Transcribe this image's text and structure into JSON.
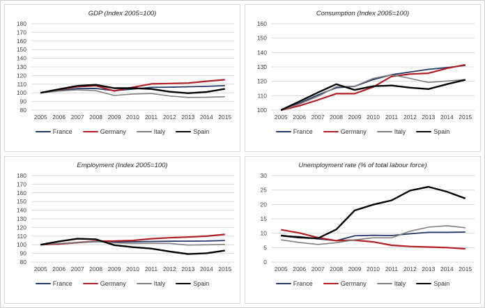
{
  "colors": {
    "grid": "#d9d9d9",
    "axis_text": "#404040",
    "panel_border": "#d9d9d9",
    "title_text": "#262626",
    "france": "#1f3864",
    "germany": "#b01e24",
    "italy": "#7f7f7f",
    "spain": "#000000"
  },
  "legend_labels": [
    "France",
    "Germany",
    "Italy",
    "Spain"
  ],
  "chart_data": [
    {
      "type": "line",
      "title": "GDP (Index 2005=100)",
      "categories": [
        "2005",
        "2006",
        "2007",
        "2008",
        "2009",
        "2010",
        "2011",
        "2012",
        "2013",
        "2014",
        "2015"
      ],
      "ylim": [
        80,
        180
      ],
      "ytick_step": 10,
      "grid": true,
      "legend_position": "bottom",
      "series": [
        {
          "name": "France",
          "color": "#1f3864",
          "width": 1.8,
          "values": [
            100,
            102.4,
            104.8,
            105.0,
            102.5,
            104.3,
            106.3,
            106.5,
            107.0,
            107.5,
            108.3
          ]
        },
        {
          "name": "Germany",
          "color": "#b01e24",
          "width": 2.2,
          "values": [
            100,
            103.7,
            107.1,
            108.2,
            102.2,
            106.4,
            110.3,
            110.8,
            111.3,
            113.4,
            115.2
          ]
        },
        {
          "name": "Italy",
          "color": "#7f7f7f",
          "width": 1.6,
          "values": [
            100,
            102.0,
            103.5,
            102.4,
            96.9,
            98.6,
            99.2,
            96.4,
            94.7,
            94.8,
            95.5
          ]
        },
        {
          "name": "Spain",
          "color": "#000000",
          "width": 2.4,
          "values": [
            100,
            104.2,
            108.1,
            109.3,
            105.4,
            105.4,
            104.4,
            101.3,
            99.6,
            101.0,
            104.5
          ]
        }
      ]
    },
    {
      "type": "line",
      "title": "Consumption (Index 2005=100)",
      "categories": [
        "2005",
        "2006",
        "2007",
        "2008",
        "2009",
        "2010",
        "2011",
        "2012",
        "2013",
        "2014",
        "2015"
      ],
      "ylim": [
        100,
        160
      ],
      "ytick_step": 10,
      "grid": true,
      "legend_position": "bottom",
      "series": [
        {
          "name": "France",
          "color": "#1f3864",
          "width": 1.8,
          "values": [
            100,
            104.8,
            110.5,
            115.5,
            116.5,
            121.2,
            124.6,
            126.4,
            128.3,
            129.5,
            131.0
          ]
        },
        {
          "name": "Germany",
          "color": "#b01e24",
          "width": 2.2,
          "values": [
            100,
            103.0,
            107.0,
            111.4,
            111.4,
            116.0,
            123.4,
            125.0,
            125.6,
            129.0,
            131.5
          ]
        },
        {
          "name": "Italy",
          "color": "#7f7f7f",
          "width": 1.6,
          "values": [
            100,
            104.2,
            109.5,
            116.2,
            116.6,
            122.0,
            124.6,
            122.0,
            119.2,
            120.2,
            121.2
          ]
        },
        {
          "name": "Spain",
          "color": "#000000",
          "width": 2.4,
          "values": [
            100,
            106.0,
            112.2,
            118.0,
            114.0,
            116.6,
            117.1,
            115.6,
            114.6,
            118.0,
            121.0
          ]
        }
      ]
    },
    {
      "type": "line",
      "title": "Employment (Index 2005=100)",
      "categories": [
        "2005",
        "2006",
        "2007",
        "2008",
        "2009",
        "2010",
        "2011",
        "2012",
        "2013",
        "2014",
        "2015"
      ],
      "ylim": [
        80,
        180
      ],
      "ytick_step": 10,
      "grid": true,
      "legend_position": "bottom",
      "series": [
        {
          "name": "France",
          "color": "#1f3864",
          "width": 1.8,
          "values": [
            100,
            100.8,
            102.3,
            103.6,
            103.3,
            103.4,
            103.8,
            104.0,
            104.1,
            104.3,
            104.9
          ]
        },
        {
          "name": "Germany",
          "color": "#b01e24",
          "width": 2.2,
          "values": [
            100,
            100.9,
            102.6,
            104.1,
            104.3,
            104.9,
            106.9,
            108.1,
            108.9,
            109.9,
            111.9
          ]
        },
        {
          "name": "Italy",
          "color": "#7f7f7f",
          "width": 1.6,
          "values": [
            100,
            101.5,
            102.7,
            103.8,
            102.1,
            101.5,
            101.7,
            101.5,
            99.6,
            99.9,
            100.3
          ]
        },
        {
          "name": "Spain",
          "color": "#000000",
          "width": 2.4,
          "values": [
            100,
            103.9,
            106.9,
            106.3,
            99.5,
            97.2,
            95.6,
            92.2,
            89.2,
            90.2,
            93.2
          ]
        }
      ]
    },
    {
      "type": "line",
      "title": "Unemployment rate (% of total labour force)",
      "categories": [
        "2005",
        "2006",
        "2007",
        "2008",
        "2009",
        "2010",
        "2011",
        "2012",
        "2013",
        "2014",
        "2015"
      ],
      "ylim": [
        0,
        30
      ],
      "ytick_step": 5,
      "grid": true,
      "legend_position": "bottom",
      "series": [
        {
          "name": "France",
          "color": "#1f3864",
          "width": 1.8,
          "values": [
            9.1,
            8.8,
            8.0,
            7.4,
            9.1,
            9.3,
            9.2,
            9.8,
            10.3,
            10.3,
            10.4
          ]
        },
        {
          "name": "Germany",
          "color": "#b01e24",
          "width": 2.2,
          "values": [
            11.2,
            10.1,
            8.5,
            7.4,
            7.6,
            7.0,
            5.8,
            5.4,
            5.2,
            5.0,
            4.6
          ]
        },
        {
          "name": "Italy",
          "color": "#7f7f7f",
          "width": 1.6,
          "values": [
            7.7,
            6.8,
            6.1,
            6.7,
            7.7,
            8.4,
            8.4,
            10.7,
            12.1,
            12.6,
            11.9
          ]
        },
        {
          "name": "Spain",
          "color": "#000000",
          "width": 2.4,
          "values": [
            9.2,
            8.5,
            8.2,
            11.3,
            17.9,
            19.9,
            21.4,
            24.8,
            26.1,
            24.4,
            22.1
          ]
        }
      ]
    }
  ]
}
